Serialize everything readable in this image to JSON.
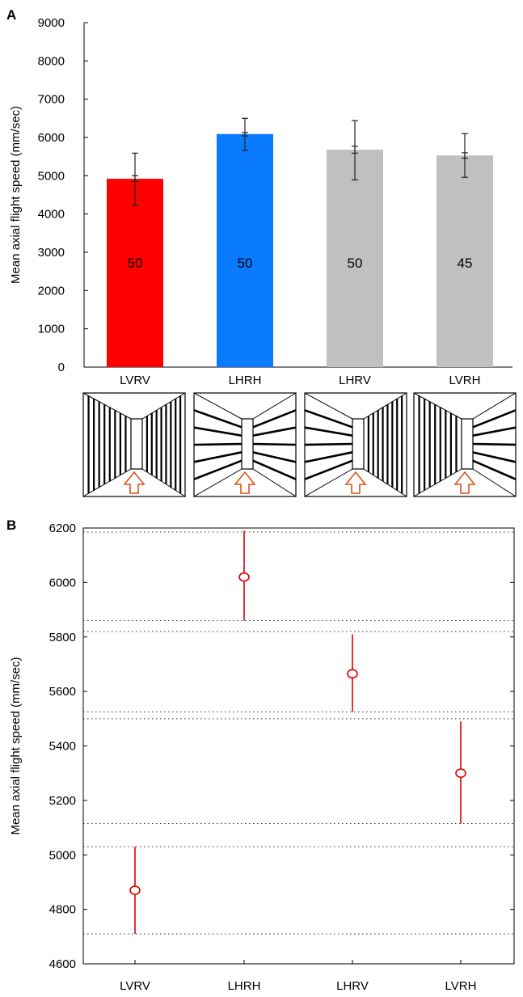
{
  "panels": {
    "a_letter": "A",
    "b_letter": "B"
  },
  "chart_data": [
    {
      "type": "bar",
      "panel": "A",
      "categories": [
        "LVRV",
        "LHRH",
        "LHRV",
        "LVRH"
      ],
      "values": [
        4920,
        6090,
        5680,
        5530
      ],
      "sd_low": [
        4230,
        5660,
        4890,
        4960
      ],
      "sd_high": [
        5590,
        6500,
        6440,
        6100
      ],
      "sem_low": [
        4850,
        6040,
        5590,
        5460
      ],
      "sem_high": [
        5000,
        6130,
        5770,
        5600
      ],
      "bar_labels": [
        "50",
        "50",
        "50",
        "45"
      ],
      "bar_colors": [
        "#ff0000",
        "#0a7bff",
        "#c0c0c0",
        "#c0c0c0"
      ],
      "ylabel": "Mean axial flight speed (mm/sec)",
      "xlabel": "",
      "ylim": [
        0,
        9000
      ],
      "yticks": [
        0,
        1000,
        2000,
        3000,
        4000,
        5000,
        6000,
        7000,
        8000,
        9000
      ]
    },
    {
      "type": "scatter",
      "panel": "B",
      "categories": [
        "LVRV",
        "LHRH",
        "LHRV",
        "LVRH"
      ],
      "means": [
        4870,
        6020,
        5665,
        5300
      ],
      "ci_low": [
        4710,
        5860,
        5525,
        5115
      ],
      "ci_high": [
        5030,
        6190,
        5810,
        5490
      ],
      "reference_lines": [
        6185,
        5860,
        5820,
        5525,
        5500,
        5115,
        5030,
        4710
      ],
      "marker_color": "#dd0000",
      "ylabel": "Mean axial flight speed (mm/sec)",
      "xlabel": "",
      "ylim": [
        4600,
        6200
      ],
      "yticks": [
        4600,
        4800,
        5000,
        5200,
        5400,
        5600,
        5800,
        6000,
        6200
      ]
    }
  ],
  "stimulus_panels": [
    {
      "condition": "LVRV",
      "left": "vertical",
      "right": "vertical",
      "arrow_color": "#d9531e"
    },
    {
      "condition": "LHRH",
      "left": "horizontal",
      "right": "horizontal",
      "arrow_color": "#d9531e"
    },
    {
      "condition": "LHRV",
      "left": "horizontal",
      "right": "vertical",
      "arrow_color": "#d9531e"
    },
    {
      "condition": "LVRH",
      "left": "vertical",
      "right": "horizontal",
      "arrow_color": "#d9531e"
    }
  ]
}
